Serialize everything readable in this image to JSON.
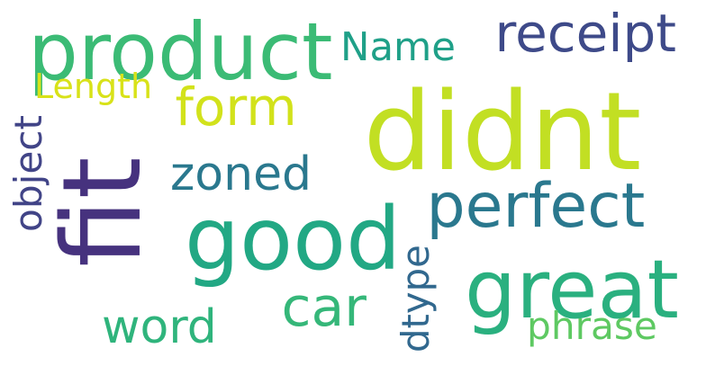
{
  "words": [
    {
      "key": "didnt",
      "text": "didnt",
      "color": "#c2df23"
    },
    {
      "key": "fit",
      "text": "fit",
      "color": "#46327e"
    },
    {
      "key": "product",
      "text": "product",
      "color": "#3bbb75"
    },
    {
      "key": "good",
      "text": "good",
      "color": "#22a884"
    },
    {
      "key": "great",
      "text": "great",
      "color": "#2ab07f"
    },
    {
      "key": "perfect",
      "text": "perfect",
      "color": "#2a788e"
    },
    {
      "key": "receipt",
      "text": "receipt",
      "color": "#3e4a89"
    },
    {
      "key": "form",
      "text": "form",
      "color": "#d2e21b"
    },
    {
      "key": "zoned",
      "text": "zoned",
      "color": "#2a788e"
    },
    {
      "key": "car",
      "text": "car",
      "color": "#35b779"
    },
    {
      "key": "word",
      "text": "word",
      "color": "#2fb47c"
    },
    {
      "key": "Name",
      "text": "Name",
      "color": "#1fa088"
    },
    {
      "key": "Length",
      "text": "Length",
      "color": "#d8e219"
    },
    {
      "key": "object",
      "text": "object",
      "color": "#414487"
    },
    {
      "key": "dtype",
      "text": "dtype",
      "color": "#31688e"
    },
    {
      "key": "phrase",
      "text": "phrase",
      "color": "#5ec962"
    }
  ]
}
